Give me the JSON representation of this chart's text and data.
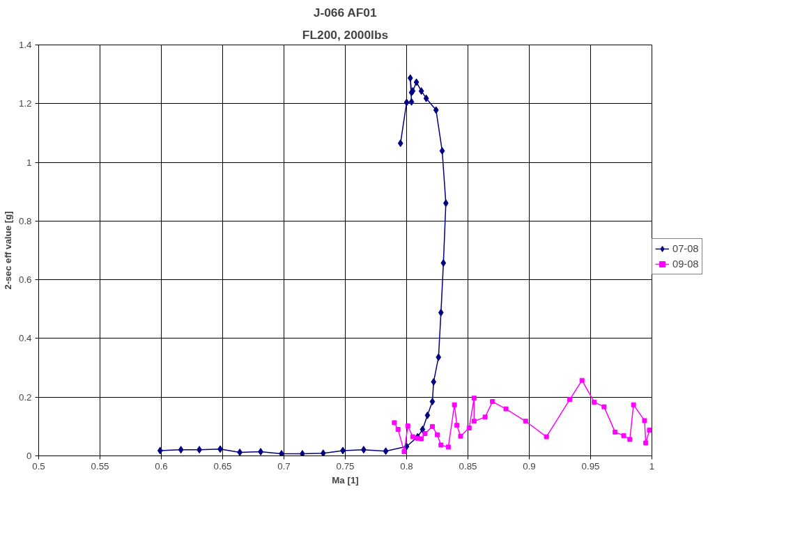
{
  "chart_data": {
    "type": "line",
    "title": "J-066 AF01",
    "subtitle": "FL200, 2000lbs",
    "xlabel": "Ma [1]",
    "ylabel": "2-sec eff value [g]",
    "xlim": [
      0.5,
      1.0
    ],
    "xticks": [
      0.5,
      0.55,
      0.6,
      0.65,
      0.7,
      0.75,
      0.8,
      0.85,
      0.9,
      0.95,
      1
    ],
    "ylim": [
      0,
      1.4
    ],
    "yticks": [
      0,
      0.2,
      0.4,
      0.6,
      0.8,
      1,
      1.2,
      1.4
    ],
    "grid": true,
    "legend": "right",
    "series": [
      {
        "name": "07-08",
        "color": "#000080",
        "marker": "diamond",
        "x": [
          0.599,
          0.616,
          0.631,
          0.648,
          0.664,
          0.681,
          0.698,
          0.715,
          0.732,
          0.748,
          0.765,
          0.783,
          0.8,
          0.809,
          0.813,
          0.817,
          0.821,
          0.822,
          0.826,
          0.828,
          0.83,
          0.832,
          0.829,
          0.824,
          0.816,
          0.812,
          0.808,
          0.805,
          0.804,
          0.803,
          0.804,
          0.8,
          0.795
        ],
        "values": [
          0.018,
          0.021,
          0.021,
          0.023,
          0.012,
          0.014,
          0.007,
          0.007,
          0.009,
          0.018,
          0.021,
          0.016,
          0.032,
          0.065,
          0.09,
          0.138,
          0.185,
          0.252,
          0.336,
          0.488,
          0.657,
          0.861,
          1.039,
          1.178,
          1.218,
          1.243,
          1.273,
          1.243,
          1.238,
          1.287,
          1.206,
          1.204,
          1.065
        ]
      },
      {
        "name": "09-08",
        "color": "#ff00ff",
        "marker": "square",
        "x": [
          0.79,
          0.793,
          0.798,
          0.801,
          0.805,
          0.809,
          0.812,
          0.815,
          0.821,
          0.825,
          0.828,
          0.834,
          0.839,
          0.841,
          0.844,
          0.851,
          0.855,
          0.855,
          0.864,
          0.87,
          0.881,
          0.897,
          0.914,
          0.933,
          0.943,
          0.953,
          0.961,
          0.97,
          0.977,
          0.982,
          0.985,
          0.994,
          0.995,
          0.998
        ],
        "values": [
          0.113,
          0.09,
          0.014,
          0.102,
          0.065,
          0.06,
          0.058,
          0.076,
          0.1,
          0.072,
          0.037,
          0.03,
          0.174,
          0.104,
          0.067,
          0.095,
          0.197,
          0.118,
          0.132,
          0.185,
          0.16,
          0.118,
          0.065,
          0.192,
          0.257,
          0.183,
          0.167,
          0.081,
          0.069,
          0.056,
          0.174,
          0.12,
          0.044,
          0.088
        ]
      }
    ]
  }
}
